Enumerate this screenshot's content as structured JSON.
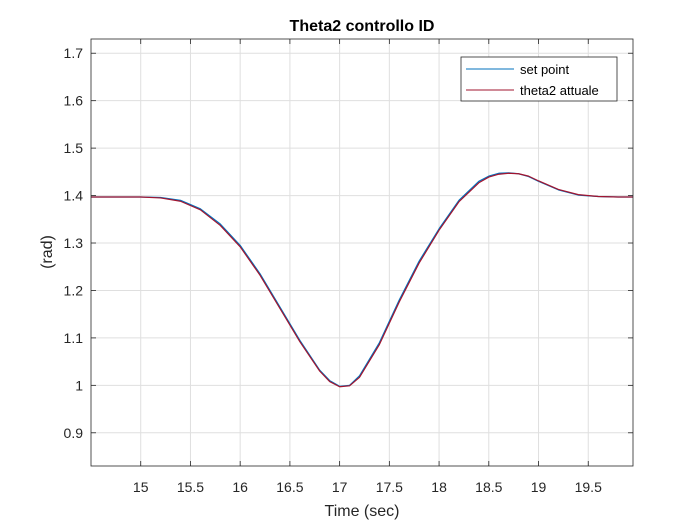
{
  "chart_data": {
    "type": "line",
    "title": "Theta2 controllo ID",
    "xlabel": "Time (sec)",
    "ylabel": "(rad)",
    "xlim": [
      14.5,
      19.95
    ],
    "ylim": [
      0.83,
      1.73
    ],
    "xticks": [
      15,
      15.5,
      16,
      16.5,
      17,
      17.5,
      18,
      18.5,
      19,
      19.5
    ],
    "xtick_labels": [
      "15",
      "15.5",
      "16",
      "16.5",
      "17",
      "17.5",
      "18",
      "18.5",
      "19",
      "19.5"
    ],
    "yticks": [
      0.9,
      1.0,
      1.1,
      1.2,
      1.3,
      1.4,
      1.5,
      1.6,
      1.7
    ],
    "ytick_labels": [
      "0.9",
      "1",
      "1.1",
      "1.2",
      "1.3",
      "1.4",
      "1.5",
      "1.6",
      "1.7"
    ],
    "grid": true,
    "legend_position": "top-right",
    "series": [
      {
        "name": "set point",
        "color": "#0072BD",
        "x": [
          14.5,
          15.0,
          15.2,
          15.4,
          15.6,
          15.8,
          16.0,
          16.2,
          16.4,
          16.6,
          16.8,
          16.9,
          17.0,
          17.1,
          17.2,
          17.4,
          17.6,
          17.8,
          18.0,
          18.2,
          18.4,
          18.5,
          18.6,
          18.7,
          18.8,
          18.9,
          19.0,
          19.2,
          19.4,
          19.6,
          19.8,
          19.95
        ],
        "y": [
          1.397,
          1.397,
          1.396,
          1.39,
          1.372,
          1.34,
          1.295,
          1.235,
          1.165,
          1.095,
          1.032,
          1.01,
          0.998,
          1.0,
          1.02,
          1.09,
          1.18,
          1.262,
          1.33,
          1.39,
          1.43,
          1.441,
          1.447,
          1.448,
          1.446,
          1.44,
          1.43,
          1.412,
          1.401,
          1.398,
          1.397,
          1.397
        ]
      },
      {
        "name": "theta2 attuale",
        "color": "#A2142F",
        "x": [
          14.5,
          15.0,
          15.2,
          15.4,
          15.6,
          15.8,
          16.0,
          16.2,
          16.4,
          16.6,
          16.8,
          16.9,
          17.0,
          17.1,
          17.2,
          17.4,
          17.6,
          17.8,
          18.0,
          18.2,
          18.4,
          18.5,
          18.6,
          18.7,
          18.8,
          18.9,
          19.0,
          19.2,
          19.4,
          19.6,
          19.8,
          19.95
        ],
        "y": [
          1.397,
          1.397,
          1.395,
          1.388,
          1.37,
          1.337,
          1.292,
          1.232,
          1.162,
          1.092,
          1.03,
          1.008,
          0.997,
          0.999,
          1.017,
          1.086,
          1.176,
          1.258,
          1.327,
          1.387,
          1.427,
          1.439,
          1.445,
          1.447,
          1.446,
          1.441,
          1.431,
          1.413,
          1.402,
          1.398,
          1.397,
          1.397
        ]
      }
    ]
  }
}
